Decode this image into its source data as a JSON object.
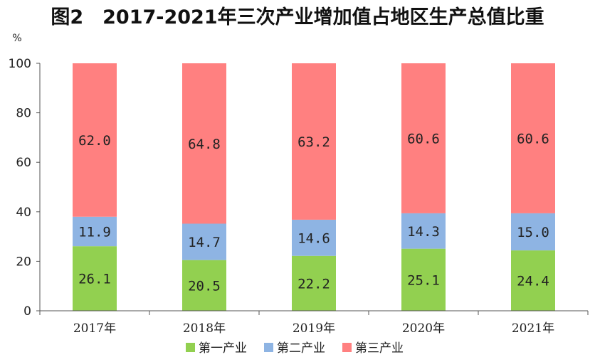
{
  "chart_data": {
    "type": "bar",
    "stacked": true,
    "title": "图2　2017-2021年三次产业增加值占地区生产总值比重",
    "ylabel": "%",
    "xlabel": "",
    "ylim": [
      0,
      100
    ],
    "yticks": [
      0,
      20,
      40,
      60,
      80,
      100
    ],
    "categories": [
      "2017年",
      "2018年",
      "2019年",
      "2020年",
      "2021年"
    ],
    "series": [
      {
        "name": "第一产业",
        "color": "#92D050",
        "values": [
          26.1,
          20.5,
          22.2,
          25.1,
          24.4
        ]
      },
      {
        "name": "第二产业",
        "color": "#8EB4E3",
        "values": [
          11.9,
          14.7,
          14.6,
          14.3,
          15.0
        ]
      },
      {
        "name": "第三产业",
        "color": "#FF8080",
        "values": [
          62.0,
          64.8,
          63.2,
          60.6,
          60.6
        ]
      }
    ],
    "legend_position": "bottom",
    "grid": false
  }
}
